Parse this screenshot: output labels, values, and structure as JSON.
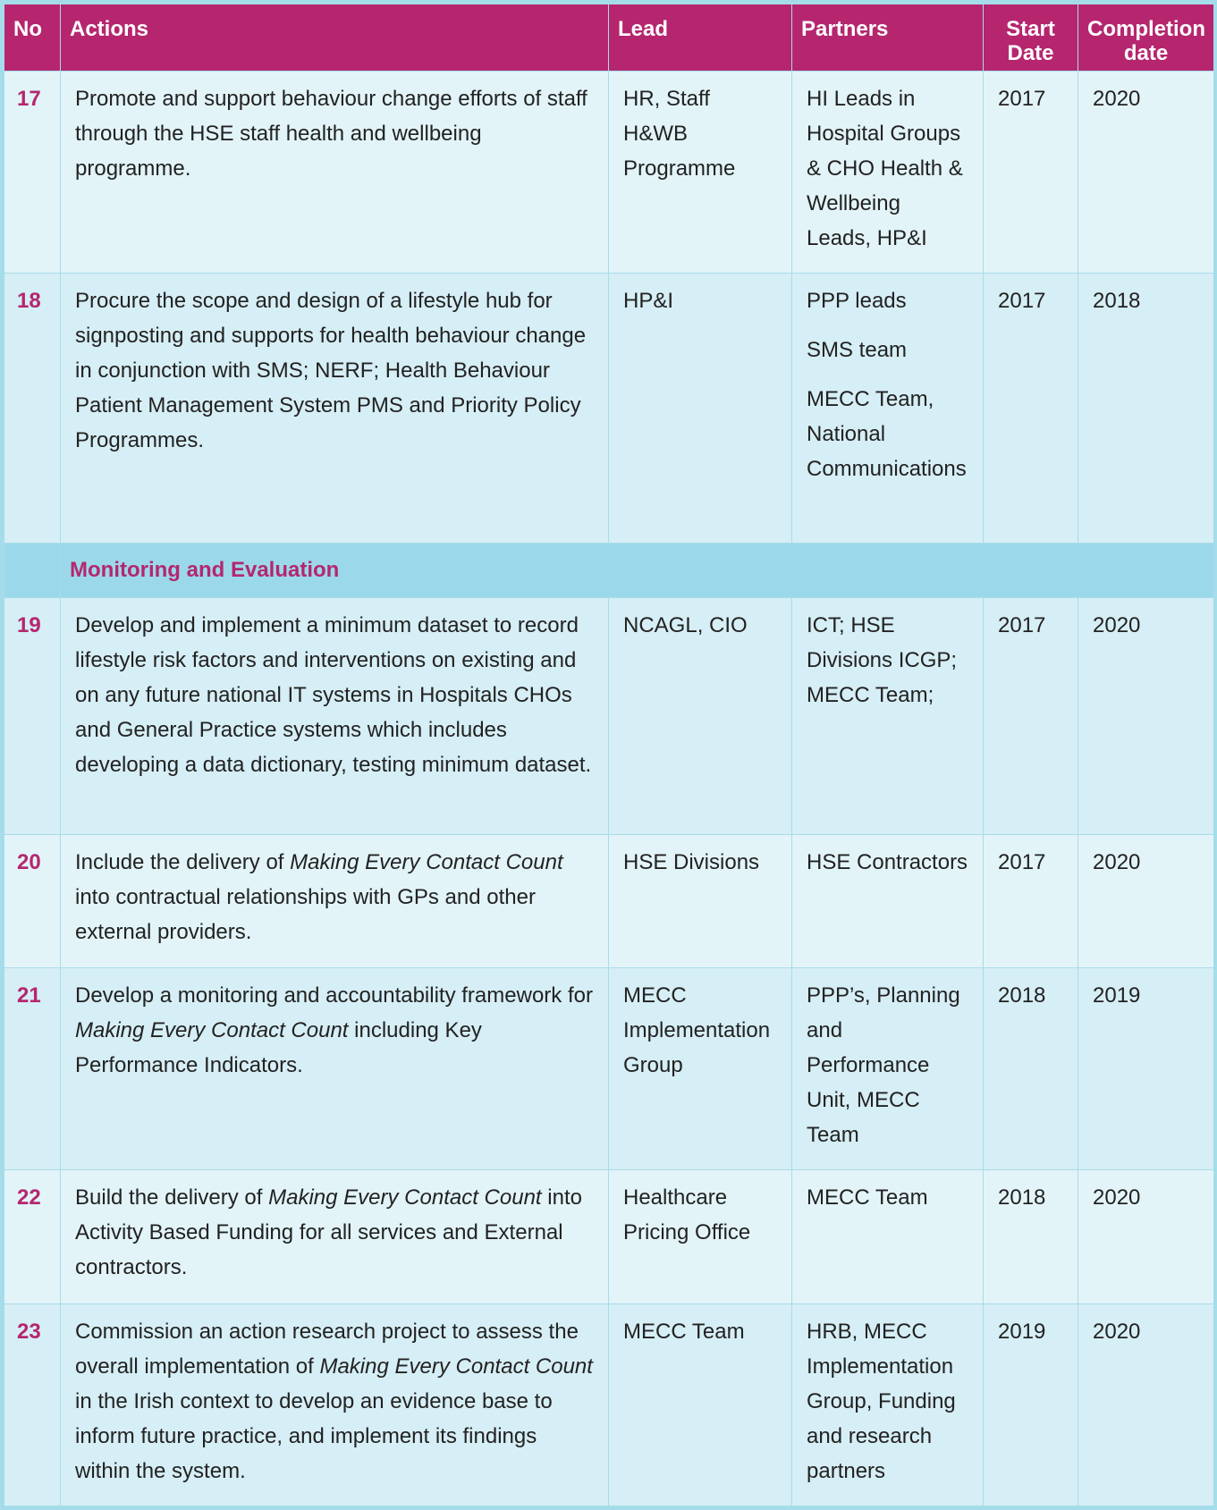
{
  "headers": {
    "no": "No",
    "actions": "Actions",
    "lead": "Lead",
    "partners": "Partners",
    "start": "Start Date",
    "completion": "Completion date"
  },
  "section_title": "Monitoring and Evaluation",
  "colors": {
    "header": "#b5266f",
    "row_light": "#e2f4f8",
    "row_dark": "#d6eef5",
    "section": "#9bd9ea",
    "border": "#a8dcea"
  },
  "rows_before": [
    {
      "no": "17",
      "action": [
        {
          "t": "Promote and support behaviour change efforts of staff through the HSE staff health and wellbeing programme."
        }
      ],
      "lead": "HR, Staff H&WB Programme",
      "partners": [
        "HI Leads in Hospital Groups & CHO Health & Wellbeing Leads, HP&I"
      ],
      "start": "2017",
      "end": "2020",
      "shade": "light"
    },
    {
      "no": "18",
      "action": [
        {
          "t": "Procure the scope and design of a lifestyle hub for signposting and supports for health behaviour change in conjunction with SMS; NERF; Health Behaviour Patient Management System PMS and Priority Policy Programmes."
        }
      ],
      "lead": "HP&I",
      "partners": [
        "PPP leads",
        "SMS team",
        "MECC Team, National Communications"
      ],
      "start": "2017",
      "end": "2018",
      "shade": "dark"
    }
  ],
  "rows_after": [
    {
      "no": "19",
      "action": [
        {
          "t": "Develop and implement a minimum dataset to record lifestyle risk factors and interventions on existing and on any future national IT systems in Hospitals CHOs and General Practice systems which includes developing a data dictionary, testing minimum dataset."
        }
      ],
      "lead": "NCAGL, CIO",
      "partners": [
        "ICT; HSE Divisions ICGP; MECC Team;"
      ],
      "start": "2017",
      "end": "2020",
      "shade": "dark"
    },
    {
      "no": "20",
      "action": [
        {
          "t": "Include the delivery of "
        },
        {
          "t": "Making Every Contact Count",
          "i": true
        },
        {
          "t": " into contractual relationships with GPs and other external providers."
        }
      ],
      "lead": "HSE Divisions",
      "partners": [
        "HSE Contractors"
      ],
      "start": "2017",
      "end": "2020",
      "shade": "light"
    },
    {
      "no": "21",
      "action": [
        {
          "t": "Develop a monitoring and accountability framework for "
        },
        {
          "t": "Making Every Contact Count",
          "i": true
        },
        {
          "t": " including Key Performance Indicators."
        }
      ],
      "lead": "MECC Implementation Group",
      "partners": [
        "PPP’s, Planning and Performance Unit, MECC Team"
      ],
      "start": "2018",
      "end": "2019",
      "shade": "dark"
    },
    {
      "no": "22",
      "action": [
        {
          "t": "Build the delivery of "
        },
        {
          "t": "Making Every Contact Count",
          "i": true
        },
        {
          "t": " into Activity Based Funding for all services and External contractors."
        }
      ],
      "lead": "Healthcare Pricing Office",
      "partners": [
        "MECC Team"
      ],
      "start": "2018",
      "end": "2020",
      "shade": "light"
    },
    {
      "no": "23",
      "action": [
        {
          "t": "Commission an action research project to assess the overall implementation of "
        },
        {
          "t": "Making Every Contact Count",
          "i": true
        },
        {
          "t": " in the Irish context to develop an evidence base to inform future practice, and implement its findings within the system."
        }
      ],
      "lead": "MECC Team",
      "partners": [
        "HRB, MECC Implementation Group, Funding and research partners"
      ],
      "start": "2019",
      "end": "2020",
      "shade": "dark"
    }
  ]
}
